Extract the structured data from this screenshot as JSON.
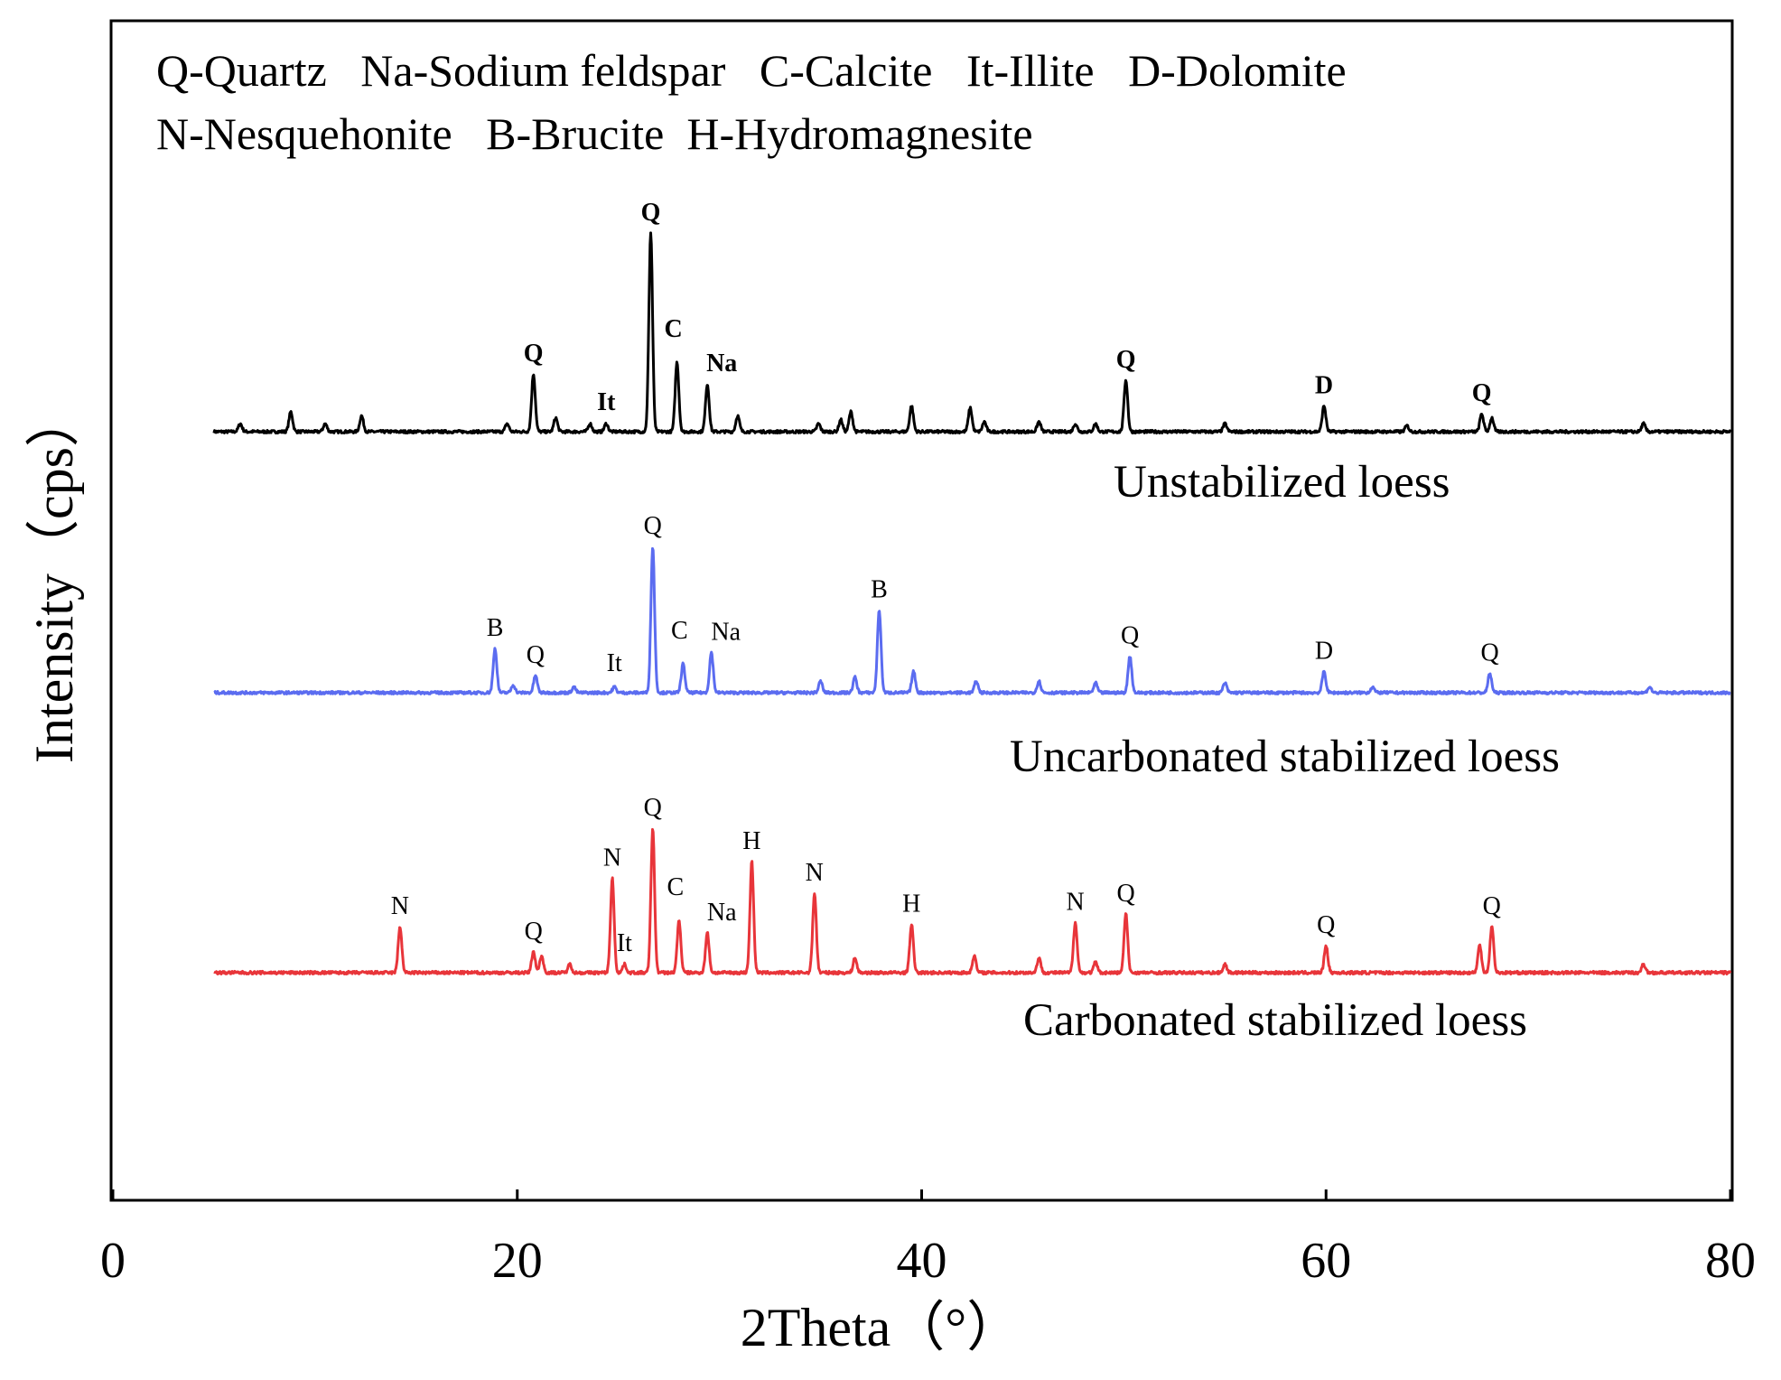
{
  "chart_data": {
    "type": "line",
    "title": "",
    "xlabel": "2Theta（°）",
    "ylabel": "Intensity（cps）",
    "xlim": [
      0,
      80
    ],
    "x_ticks": [
      0,
      20,
      40,
      60,
      80
    ],
    "x_tick_labels": [
      "0",
      "20",
      "40",
      "60",
      "80"
    ],
    "grid": false,
    "legend_lines": [
      "Q-Quartz   Na-Sodium feldspar   C-Calcite   It-Illite   D-Dolomite",
      "N-Nesquehonite   B-Brucite  H-Hydromagnesite"
    ],
    "legend_position": "top-left",
    "series": [
      {
        "name": "Unstabilized loess",
        "color": "#000000",
        "x_range": [
          5,
          80
        ],
        "baseline": 0,
        "peaks": [
          {
            "x": 6.3,
            "h": 4
          },
          {
            "x": 8.8,
            "h": 10
          },
          {
            "x": 10.5,
            "h": 4
          },
          {
            "x": 12.3,
            "h": 8
          },
          {
            "x": 19.5,
            "h": 4
          },
          {
            "x": 20.8,
            "h": 29,
            "label": "Q"
          },
          {
            "x": 21.9,
            "h": 7
          },
          {
            "x": 23.6,
            "h": 4
          },
          {
            "x": 24.4,
            "h": 4,
            "label": "It"
          },
          {
            "x": 26.6,
            "h": 100,
            "label": "Q"
          },
          {
            "x": 27.9,
            "h": 35,
            "label": "C"
          },
          {
            "x": 29.4,
            "h": 24,
            "label": "Na"
          },
          {
            "x": 30.9,
            "h": 8
          },
          {
            "x": 34.9,
            "h": 4
          },
          {
            "x": 36.0,
            "h": 6
          },
          {
            "x": 36.5,
            "h": 10
          },
          {
            "x": 39.5,
            "h": 13
          },
          {
            "x": 42.4,
            "h": 12
          },
          {
            "x": 43.1,
            "h": 5
          },
          {
            "x": 45.8,
            "h": 5
          },
          {
            "x": 47.6,
            "h": 4
          },
          {
            "x": 48.6,
            "h": 4
          },
          {
            "x": 50.1,
            "h": 26,
            "label": "Q"
          },
          {
            "x": 55.0,
            "h": 4
          },
          {
            "x": 59.9,
            "h": 13,
            "label": "D"
          },
          {
            "x": 64.0,
            "h": 3
          },
          {
            "x": 67.7,
            "h": 9,
            "label": "Q"
          },
          {
            "x": 68.2,
            "h": 7
          },
          {
            "x": 75.7,
            "h": 4
          }
        ]
      },
      {
        "name": "Uncarbonated stabilized loess",
        "color": "#5b6cf0",
        "x_range": [
          5,
          80
        ],
        "baseline": 0,
        "peaks": [
          {
            "x": 18.9,
            "h": 23,
            "label": "B"
          },
          {
            "x": 19.8,
            "h": 4
          },
          {
            "x": 20.9,
            "h": 9,
            "label": "Q"
          },
          {
            "x": 22.8,
            "h": 3
          },
          {
            "x": 24.8,
            "h": 3,
            "label": "It"
          },
          {
            "x": 26.7,
            "h": 76,
            "label": "Q"
          },
          {
            "x": 28.2,
            "h": 15,
            "label": "C"
          },
          {
            "x": 29.6,
            "h": 21,
            "label": "Na"
          },
          {
            "x": 35.0,
            "h": 6
          },
          {
            "x": 36.7,
            "h": 8
          },
          {
            "x": 37.9,
            "h": 43,
            "label": "B"
          },
          {
            "x": 39.6,
            "h": 11
          },
          {
            "x": 42.7,
            "h": 6
          },
          {
            "x": 45.8,
            "h": 6
          },
          {
            "x": 48.6,
            "h": 5
          },
          {
            "x": 50.3,
            "h": 19,
            "label": "Q"
          },
          {
            "x": 55.0,
            "h": 5
          },
          {
            "x": 59.9,
            "h": 11,
            "label": "D"
          },
          {
            "x": 62.3,
            "h": 3
          },
          {
            "x": 68.1,
            "h": 10,
            "label": "Q"
          },
          {
            "x": 76.0,
            "h": 3
          }
        ]
      },
      {
        "name": "Carbonated stabilized loess",
        "color": "#e8353a",
        "x_range": [
          5,
          80
        ],
        "baseline": 0,
        "peaks": [
          {
            "x": 14.2,
            "h": 22,
            "label": "N"
          },
          {
            "x": 20.8,
            "h": 10,
            "label": "Q"
          },
          {
            "x": 21.2,
            "h": 8
          },
          {
            "x": 22.6,
            "h": 4
          },
          {
            "x": 24.7,
            "h": 45,
            "label": "N"
          },
          {
            "x": 25.3,
            "h": 4,
            "label": "It"
          },
          {
            "x": 26.7,
            "h": 69,
            "label": "Q"
          },
          {
            "x": 28.0,
            "h": 25,
            "label": "C"
          },
          {
            "x": 29.4,
            "h": 19,
            "label": "Na"
          },
          {
            "x": 31.6,
            "h": 53,
            "label": "H"
          },
          {
            "x": 34.7,
            "h": 38,
            "label": "N"
          },
          {
            "x": 36.7,
            "h": 7
          },
          {
            "x": 39.5,
            "h": 23,
            "label": "H"
          },
          {
            "x": 42.6,
            "h": 8
          },
          {
            "x": 45.8,
            "h": 7
          },
          {
            "x": 47.6,
            "h": 24,
            "label": "N"
          },
          {
            "x": 48.6,
            "h": 5
          },
          {
            "x": 50.1,
            "h": 28,
            "label": "Q"
          },
          {
            "x": 55.0,
            "h": 4
          },
          {
            "x": 60.0,
            "h": 13,
            "label": "Q"
          },
          {
            "x": 67.6,
            "h": 13
          },
          {
            "x": 68.2,
            "h": 22,
            "label": "Q"
          },
          {
            "x": 75.7,
            "h": 4
          }
        ]
      }
    ],
    "series_labels": [
      "Unstabilized loess",
      "Uncarbonated stabilized loess",
      "Carbonated stabilized loess"
    ]
  }
}
